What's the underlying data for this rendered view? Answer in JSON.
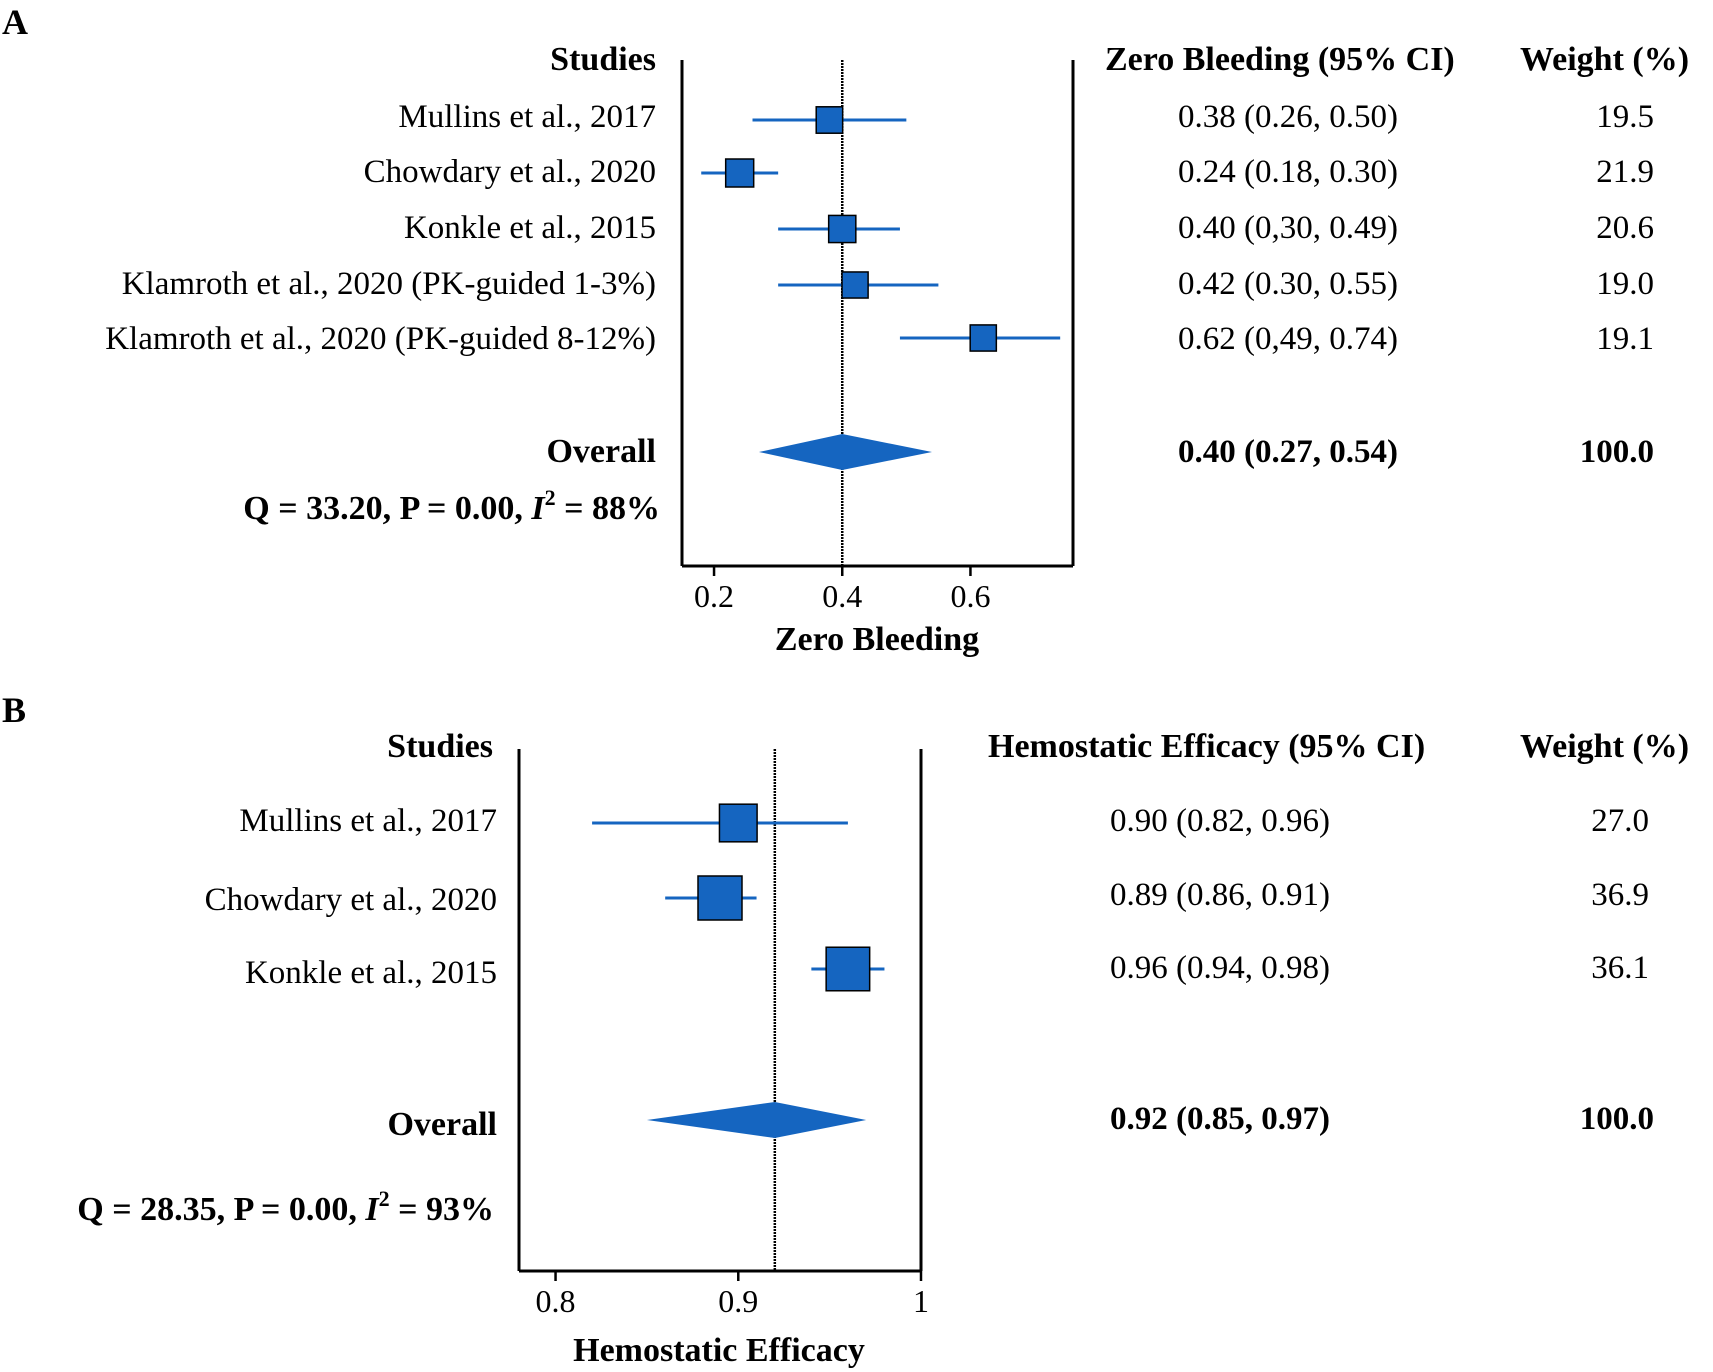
{
  "figure": {
    "mark_color": "#1565C0",
    "mark_edge_color": "#000000",
    "line_color": "#000000"
  },
  "chart_data": [
    {
      "type": "forest",
      "panel_label": "A",
      "studies_header": "Studies",
      "estimate_header": "Zero Bleeding (95% CI)",
      "weight_header": "Weight (%)",
      "xlabel": "Zero Bleeding",
      "xlim": [
        0.15,
        0.76
      ],
      "xticks": [
        0.2,
        0.4,
        0.6
      ],
      "xtick_labels": [
        "0.2",
        "0.4",
        "0.6"
      ],
      "reference_line": 0.4,
      "studies": [
        {
          "label": "Mullins et al., 2017",
          "estimate": 0.38,
          "ci_low": 0.26,
          "ci_high": 0.5,
          "ci_text": "0.38 (0.26, 0.50)",
          "weight": "19.5"
        },
        {
          "label": "Chowdary et al., 2020",
          "estimate": 0.24,
          "ci_low": 0.18,
          "ci_high": 0.3,
          "ci_text": "0.24 (0.18, 0.30)",
          "weight": "21.9"
        },
        {
          "label": "Konkle et al., 2015",
          "estimate": 0.4,
          "ci_low": 0.3,
          "ci_high": 0.49,
          "ci_text": "0.40 (0,30, 0.49)",
          "weight": "20.6"
        },
        {
          "label": "Klamroth et al., 2020 (PK-guided 1-3%)",
          "estimate": 0.42,
          "ci_low": 0.3,
          "ci_high": 0.55,
          "ci_text": "0.42 (0.30, 0.55)",
          "weight": "19.0"
        },
        {
          "label": "Klamroth et al., 2020 (PK-guided 8-12%)",
          "estimate": 0.62,
          "ci_low": 0.49,
          "ci_high": 0.74,
          "ci_text": "0.62 (0,49, 0.74)",
          "weight": "19.1"
        }
      ],
      "overall": {
        "label": "Overall",
        "estimate": 0.4,
        "ci_low": 0.27,
        "ci_high": 0.54,
        "ci_text": "0.40 (0.27, 0.54)",
        "weight": "100.0"
      },
      "heterogeneity": {
        "prefix": "Q = 33.20, P = 0.00, ",
        "stat_letter": "I",
        "stat_sup": "2",
        "suffix": " = 88%"
      }
    },
    {
      "type": "forest",
      "panel_label": "B",
      "studies_header": "Studies",
      "estimate_header": "Hemostatic Efficacy (95% CI)",
      "weight_header": "Weight (%)",
      "xlabel": "Hemostatic Efficacy",
      "xlim": [
        0.78,
        1.0
      ],
      "xticks": [
        0.8,
        0.9,
        1.0
      ],
      "xtick_labels": [
        "0.8",
        "0.9",
        "1"
      ],
      "reference_line": 0.92,
      "studies": [
        {
          "label": "Mullins et al., 2017",
          "estimate": 0.9,
          "ci_low": 0.82,
          "ci_high": 0.96,
          "ci_text": "0.90 (0.82, 0.96)",
          "weight": "27.0"
        },
        {
          "label": "Chowdary et al., 2020",
          "estimate": 0.89,
          "ci_low": 0.86,
          "ci_high": 0.91,
          "ci_text": "0.89 (0.86, 0.91)",
          "weight": "36.9"
        },
        {
          "label": "Konkle et al., 2015",
          "estimate": 0.96,
          "ci_low": 0.94,
          "ci_high": 0.98,
          "ci_text": "0.96 (0.94, 0.98)",
          "weight": "36.1"
        }
      ],
      "overall": {
        "label": "Overall",
        "estimate": 0.92,
        "ci_low": 0.85,
        "ci_high": 0.97,
        "ci_text": "0.92 (0.85, 0.97)",
        "weight": "100.0"
      },
      "heterogeneity": {
        "prefix": "Q = 28.35, P = 0.00, ",
        "stat_letter": "I",
        "stat_sup": "2",
        "suffix": " = 93%"
      }
    }
  ]
}
